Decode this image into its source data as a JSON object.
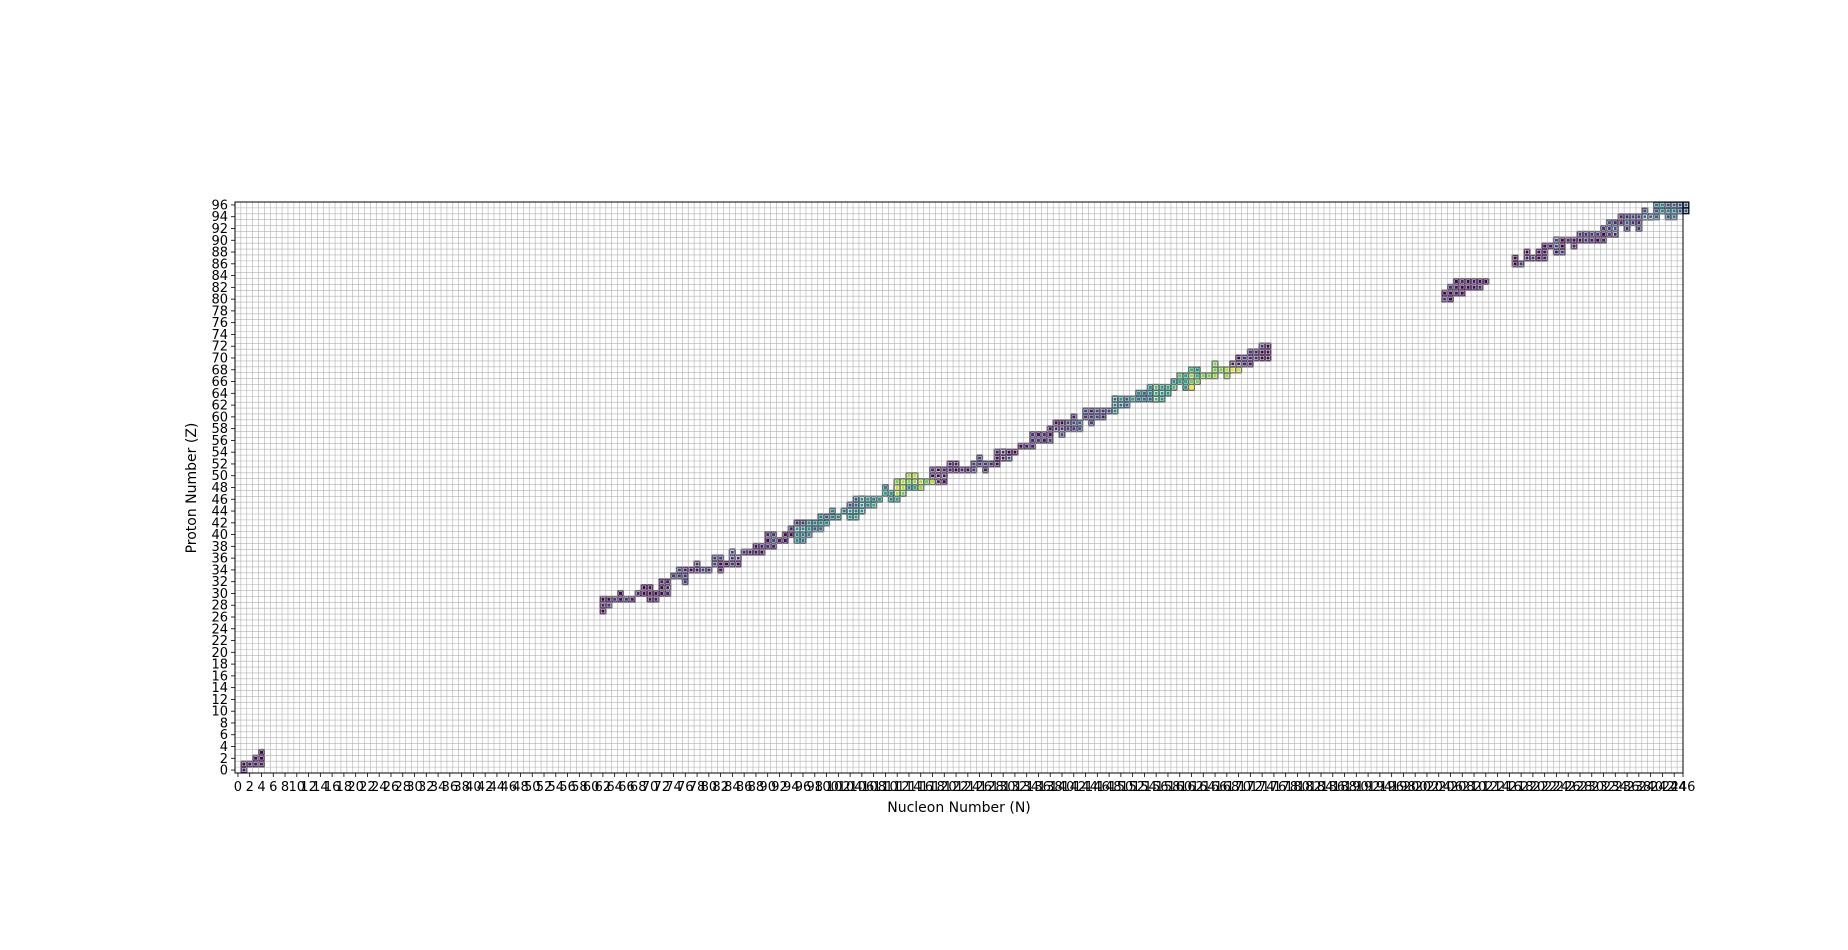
{
  "chart_data": {
    "type": "heatmap",
    "title": "",
    "xlabel": "Nucleon Number (N)",
    "ylabel": "Proton Number (Z)",
    "xlim": [
      0,
      246
    ],
    "ylim": [
      0,
      97
    ],
    "x_tick_step": 2,
    "y_tick_step": 2,
    "grid": true,
    "colormap": "viridis",
    "background_color": "#ffffff",
    "grid_color": "#b0b0b0",
    "cell_edge_color": "#000000",
    "cell_outline_color": "#ffffff",
    "note_values": "value is relative intensity (0..1) mapped through viridis colormap",
    "bands": [
      {
        "n_start": 1,
        "n_end": 4,
        "z_start": 1,
        "z_end": 2,
        "value": 0.05
      },
      {
        "n_start": 62,
        "n_end": 73,
        "z_start": 28,
        "z_end": 31,
        "value": 0.05
      },
      {
        "n_start": 72,
        "n_end": 85,
        "z_start": 32,
        "z_end": 36,
        "value": 0.08
      },
      {
        "n_start": 84,
        "n_end": 96,
        "z_start": 36,
        "z_end": 41,
        "value": 0.12
      },
      {
        "n_start": 95,
        "n_end": 106,
        "z_start": 40,
        "z_end": 45,
        "value": 0.4
      },
      {
        "n_start": 104,
        "n_end": 116,
        "z_start": 44,
        "z_end": 49,
        "value": 0.55
      },
      {
        "n_start": 112,
        "n_end": 120,
        "z_start": 48,
        "z_end": 50,
        "value": 0.85
      },
      {
        "n_start": 118,
        "n_end": 131,
        "z_start": 50,
        "z_end": 53,
        "value": 0.07
      },
      {
        "n_start": 130,
        "n_end": 140,
        "z_start": 53,
        "z_end": 58,
        "value": 0.1
      },
      {
        "n_start": 139,
        "n_end": 150,
        "z_start": 58,
        "z_end": 62,
        "value": 0.18
      },
      {
        "n_start": 149,
        "n_end": 157,
        "z_start": 62,
        "z_end": 64,
        "value": 0.45
      },
      {
        "n_start": 156,
        "n_end": 163,
        "z_start": 64,
        "z_end": 67,
        "value": 0.6
      },
      {
        "n_start": 162,
        "n_end": 170,
        "z_start": 66,
        "z_end": 69,
        "value": 0.88
      },
      {
        "n_start": 169,
        "n_end": 175,
        "z_start": 69,
        "z_end": 71,
        "value": 0.05
      },
      {
        "n_start": 205,
        "n_end": 212,
        "z_start": 81,
        "z_end": 83,
        "value": 0.05
      },
      {
        "n_start": 217,
        "n_end": 224,
        "z_start": 86,
        "z_end": 89,
        "value": 0.05
      },
      {
        "n_start": 224,
        "n_end": 234,
        "z_start": 89,
        "z_end": 92,
        "value": 0.08
      },
      {
        "n_start": 233,
        "n_end": 240,
        "z_start": 92,
        "z_end": 94,
        "value": 0.2
      },
      {
        "n_start": 239,
        "n_end": 246,
        "z_start": 94,
        "z_end": 96,
        "value": 0.35
      }
    ]
  }
}
